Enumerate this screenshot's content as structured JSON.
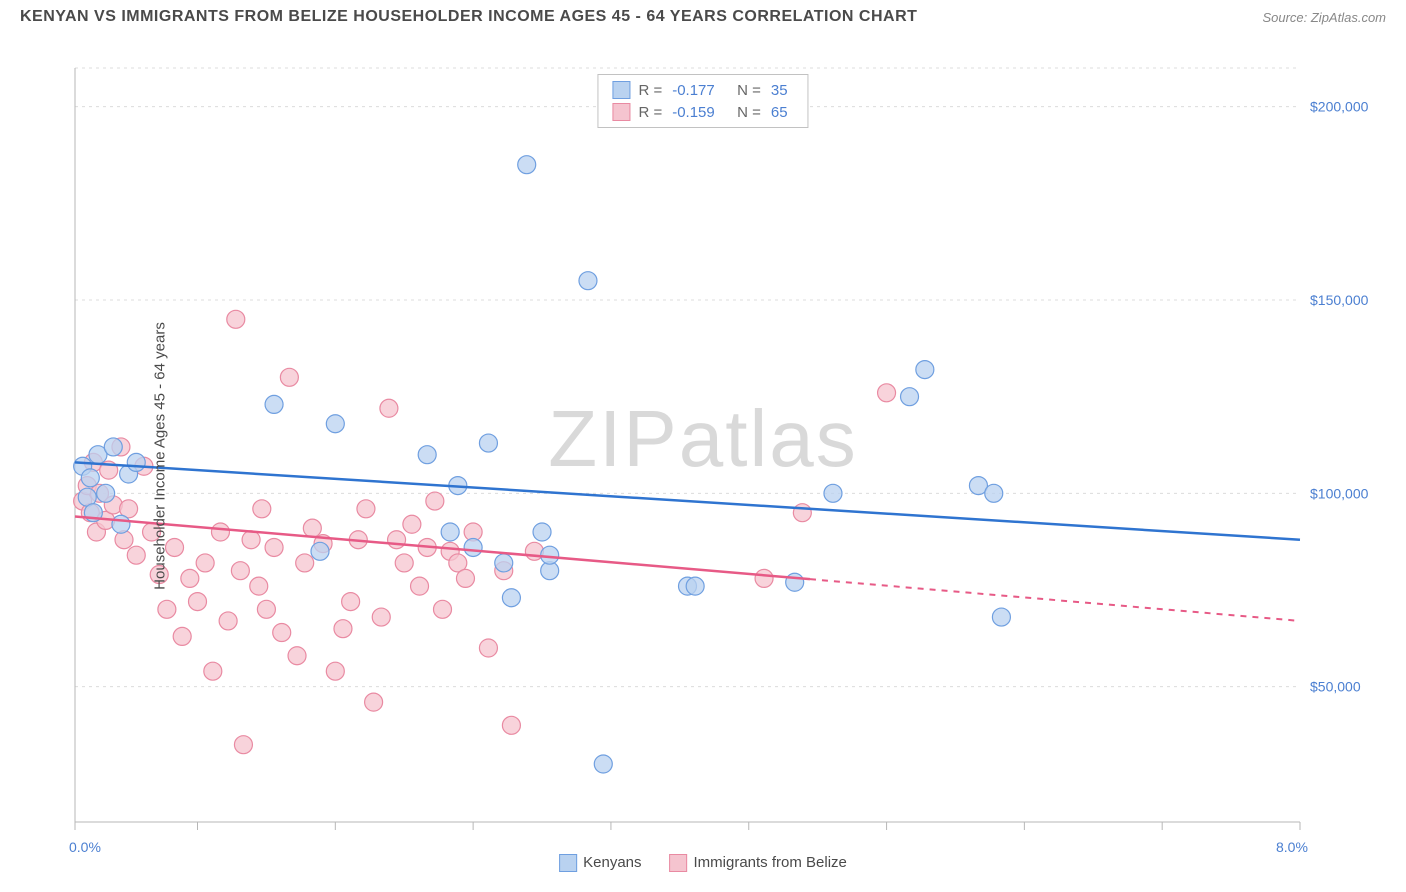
{
  "header": {
    "title": "KENYAN VS IMMIGRANTS FROM BELIZE HOUSEHOLDER INCOME AGES 45 - 64 YEARS CORRELATION CHART",
    "source": "Source: ZipAtlas.com"
  },
  "watermark": "ZIPatlas",
  "chart": {
    "type": "scatter-correlation",
    "ylabel": "Householder Income Ages 45 - 64 years",
    "xlim": [
      0,
      8
    ],
    "ylim": [
      15000,
      210000
    ],
    "xtick_start_label": "0.0%",
    "xtick_end_label": "8.0%",
    "xtick_positions": [
      0,
      0.8,
      1.7,
      2.6,
      3.5,
      4.4,
      5.3,
      6.2,
      7.1,
      8.0
    ],
    "ytick_labels": [
      "$50,000",
      "$100,000",
      "$150,000",
      "$200,000"
    ],
    "ytick_values": [
      50000,
      100000,
      150000,
      200000
    ],
    "grid_color": "#dcdcdc",
    "background_color": "#ffffff",
    "series": [
      {
        "name": "Kenyans",
        "color_fill": "#b9d2f0",
        "color_stroke": "#6f9fe0",
        "line_color": "#2f74d0",
        "line": {
          "x1": 0,
          "y1": 108000,
          "x2": 8,
          "y2": 88000
        },
        "dash_from_x": null,
        "stats": {
          "R": "-0.177",
          "N": "35"
        },
        "marker_radius": 9,
        "points": [
          [
            0.05,
            107000
          ],
          [
            0.08,
            99000
          ],
          [
            0.1,
            104000
          ],
          [
            0.12,
            95000
          ],
          [
            0.15,
            110000
          ],
          [
            0.2,
            100000
          ],
          [
            0.25,
            112000
          ],
          [
            0.3,
            92000
          ],
          [
            0.35,
            105000
          ],
          [
            0.4,
            108000
          ],
          [
            1.3,
            123000
          ],
          [
            1.7,
            118000
          ],
          [
            1.6,
            85000
          ],
          [
            2.3,
            110000
          ],
          [
            2.45,
            90000
          ],
          [
            2.5,
            102000
          ],
          [
            2.7,
            113000
          ],
          [
            2.8,
            82000
          ],
          [
            2.85,
            73000
          ],
          [
            2.6,
            86000
          ],
          [
            2.95,
            185000
          ],
          [
            3.05,
            90000
          ],
          [
            3.1,
            80000
          ],
          [
            3.1,
            84000
          ],
          [
            3.35,
            155000
          ],
          [
            3.45,
            30000
          ],
          [
            4.0,
            76000
          ],
          [
            4.05,
            76000
          ],
          [
            4.7,
            77000
          ],
          [
            4.95,
            100000
          ],
          [
            5.45,
            125000
          ],
          [
            5.55,
            132000
          ],
          [
            5.9,
            102000
          ],
          [
            6.05,
            68000
          ],
          [
            6.0,
            100000
          ]
        ]
      },
      {
        "name": "Immigrants from Belize",
        "color_fill": "#f5c4cf",
        "color_stroke": "#e98aa2",
        "line_color": "#e75a86",
        "line": {
          "x1": 0,
          "y1": 94000,
          "x2": 8,
          "y2": 67000
        },
        "dash_from_x": 4.8,
        "stats": {
          "R": "-0.159",
          "N": "65"
        },
        "marker_radius": 9,
        "points": [
          [
            0.05,
            98000
          ],
          [
            0.08,
            102000
          ],
          [
            0.1,
            95000
          ],
          [
            0.12,
            108000
          ],
          [
            0.14,
            90000
          ],
          [
            0.16,
            100000
          ],
          [
            0.2,
            93000
          ],
          [
            0.22,
            106000
          ],
          [
            0.25,
            97000
          ],
          [
            0.3,
            112000
          ],
          [
            0.32,
            88000
          ],
          [
            0.35,
            96000
          ],
          [
            0.4,
            84000
          ],
          [
            0.45,
            107000
          ],
          [
            0.5,
            90000
          ],
          [
            0.55,
            79000
          ],
          [
            0.6,
            70000
          ],
          [
            0.65,
            86000
          ],
          [
            0.7,
            63000
          ],
          [
            0.75,
            78000
          ],
          [
            0.8,
            72000
          ],
          [
            0.85,
            82000
          ],
          [
            0.9,
            54000
          ],
          [
            0.95,
            90000
          ],
          [
            1.0,
            67000
          ],
          [
            1.05,
            145000
          ],
          [
            1.08,
            80000
          ],
          [
            1.1,
            35000
          ],
          [
            1.15,
            88000
          ],
          [
            1.2,
            76000
          ],
          [
            1.22,
            96000
          ],
          [
            1.25,
            70000
          ],
          [
            1.3,
            86000
          ],
          [
            1.35,
            64000
          ],
          [
            1.4,
            130000
          ],
          [
            1.45,
            58000
          ],
          [
            1.5,
            82000
          ],
          [
            1.55,
            91000
          ],
          [
            1.62,
            87000
          ],
          [
            1.7,
            54000
          ],
          [
            1.75,
            65000
          ],
          [
            1.8,
            72000
          ],
          [
            1.85,
            88000
          ],
          [
            1.9,
            96000
          ],
          [
            1.95,
            46000
          ],
          [
            2.0,
            68000
          ],
          [
            2.05,
            122000
          ],
          [
            2.1,
            88000
          ],
          [
            2.15,
            82000
          ],
          [
            2.2,
            92000
          ],
          [
            2.25,
            76000
          ],
          [
            2.3,
            86000
          ],
          [
            2.35,
            98000
          ],
          [
            2.4,
            70000
          ],
          [
            2.45,
            85000
          ],
          [
            2.5,
            82000
          ],
          [
            2.55,
            78000
          ],
          [
            2.6,
            90000
          ],
          [
            2.7,
            60000
          ],
          [
            2.8,
            80000
          ],
          [
            2.85,
            40000
          ],
          [
            3.0,
            85000
          ],
          [
            4.5,
            78000
          ],
          [
            4.75,
            95000
          ],
          [
            5.3,
            126000
          ]
        ]
      }
    ],
    "bottom_legend": [
      {
        "label": "Kenyans",
        "fill": "#b9d2f0",
        "stroke": "#6f9fe0"
      },
      {
        "label": "Immigrants from Belize",
        "fill": "#f5c4cf",
        "stroke": "#e98aa2"
      }
    ]
  },
  "labels": {
    "R_prefix": "R = ",
    "N_prefix": "N = "
  }
}
